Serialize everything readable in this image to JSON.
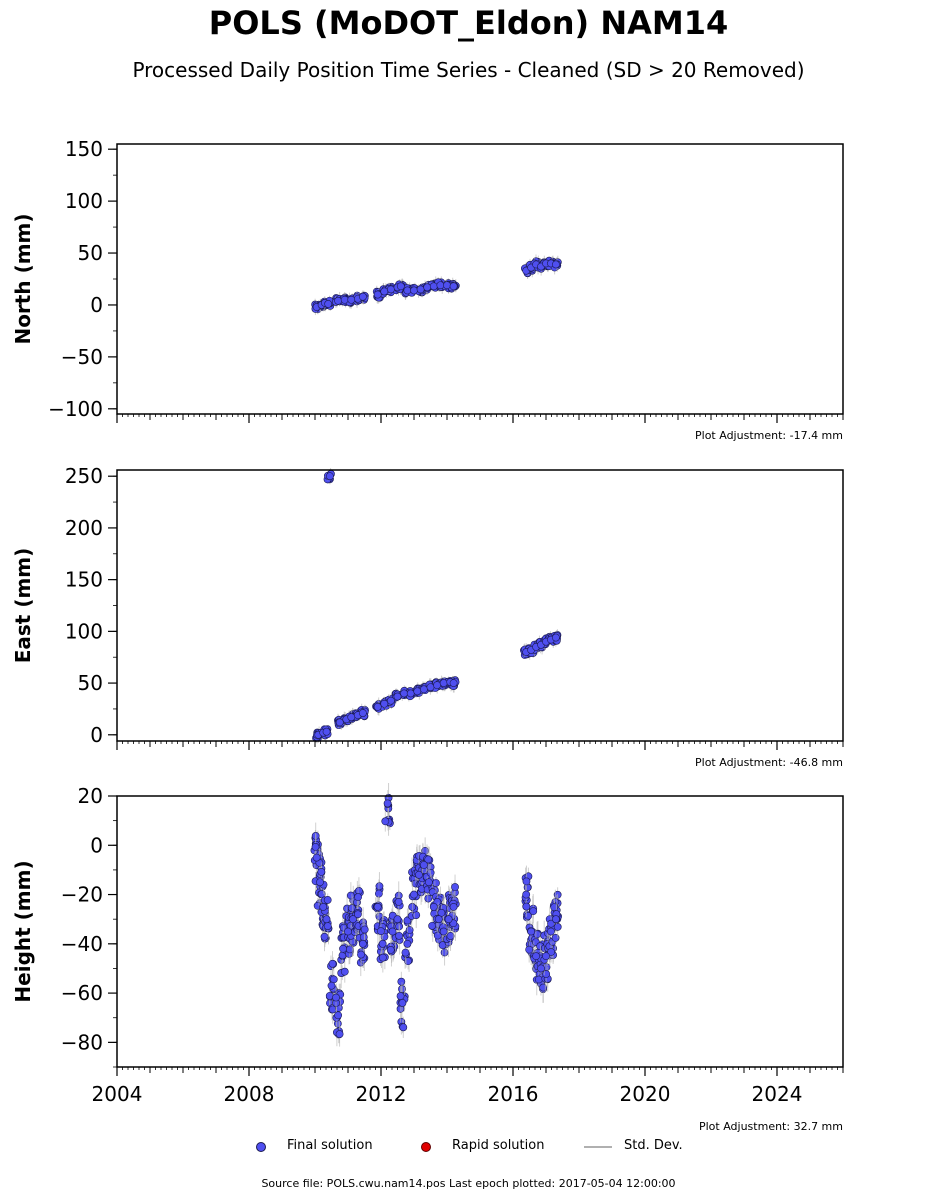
{
  "title": "POLS (MoDOT_Eldon) NAM14",
  "subtitle": "Processed Daily Position Time Series - Cleaned (SD > 20 Removed)",
  "colors": {
    "final": "#4f4ff0",
    "rapid": "#e00000",
    "stddev": "#b0b0b0",
    "marker_edge": "#1a1a50"
  },
  "legend": {
    "final": "Final solution",
    "rapid": "Rapid solution",
    "stddev": "Std. Dev."
  },
  "source_text": "Source file: POLS.cwu.nam14.pos  Last epoch plotted: 2017-05-04 12:00:00",
  "chart_data": [
    {
      "type": "scatter",
      "ylabel": "North (mm)",
      "adjustment": "Plot Adjustment: -17.4 mm",
      "xlim": [
        2004,
        2026
      ],
      "ylim": [
        -105,
        155
      ],
      "yticks": [
        -100,
        -50,
        0,
        50,
        100,
        150
      ],
      "xticks": [
        2004,
        2008,
        2012,
        2016,
        2020,
        2024
      ],
      "show_xticklabels": false,
      "series": [
        {
          "x": [
            2010.05,
            2010.2,
            2010.3,
            2010.4,
            2010.7,
            2010.9,
            2011.1,
            2011.3,
            2011.45,
            2011.9,
            2012.1,
            2012.3,
            2012.5,
            2012.6,
            2012.8,
            2013.0,
            2013.2,
            2013.4,
            2013.6,
            2013.8,
            2014.0,
            2014.2,
            2016.4,
            2016.55,
            2016.7,
            2016.85,
            2017.0,
            2017.15,
            2017.3
          ],
          "y": [
            -2,
            0,
            2,
            1,
            4,
            5,
            5,
            6,
            8,
            10,
            13,
            15,
            17,
            18,
            14,
            14,
            15,
            17,
            18,
            19,
            19,
            18,
            33,
            36,
            39,
            37,
            40,
            40,
            39
          ]
        }
      ]
    },
    {
      "type": "scatter",
      "ylabel": "East (mm)",
      "adjustment": "Plot Adjustment: -46.8 mm",
      "xlim": [
        2004,
        2026
      ],
      "ylim": [
        -6,
        256
      ],
      "yticks": [
        0,
        50,
        100,
        150,
        200,
        250
      ],
      "xticks": [
        2004,
        2008,
        2012,
        2016,
        2020,
        2024
      ],
      "show_xticklabels": false,
      "series": [
        {
          "x": [
            2010.1,
            2010.25,
            2010.35,
            2010.45,
            2010.75,
            2010.95,
            2011.1,
            2011.3,
            2011.45,
            2011.9,
            2012.1,
            2012.3,
            2012.5,
            2012.7,
            2012.9,
            2013.1,
            2013.3,
            2013.5,
            2013.7,
            2013.9,
            2014.1,
            2014.2,
            2016.4,
            2016.55,
            2016.7,
            2016.85,
            2017.0,
            2017.15,
            2017.3
          ],
          "y": [
            0,
            2,
            3,
            250,
            12,
            15,
            17,
            19,
            21,
            27,
            30,
            33,
            37,
            40,
            40,
            42,
            44,
            46,
            48,
            50,
            51,
            50,
            80,
            82,
            85,
            87,
            90,
            92,
            94
          ]
        }
      ]
    },
    {
      "type": "scatter",
      "ylabel": "Height (mm)",
      "adjustment": "Plot Adjustment: 32.7 mm",
      "xlim": [
        2004,
        2026
      ],
      "ylim": [
        -90,
        20
      ],
      "yticks": [
        -80,
        -60,
        -40,
        -20,
        0,
        20
      ],
      "xticks": [
        2004,
        2008,
        2012,
        2016,
        2020,
        2024
      ],
      "show_xticklabels": true,
      "series": [
        {
          "x": [
            2010.05,
            2010.15,
            2010.25,
            2010.35,
            2010.5,
            2010.7,
            2010.85,
            2011.0,
            2011.15,
            2011.3,
            2011.45,
            2011.9,
            2012.05,
            2012.2,
            2012.35,
            2012.5,
            2012.65,
            2012.8,
            2013.0,
            2013.15,
            2013.3,
            2013.45,
            2013.6,
            2013.75,
            2013.9,
            2014.05,
            2014.2,
            2016.4,
            2016.55,
            2016.7,
            2016.85,
            2017.0,
            2017.15,
            2017.3
          ],
          "y": [
            -5,
            -15,
            -25,
            -30,
            -57,
            -69,
            -42,
            -35,
            -30,
            -28,
            -40,
            -25,
            -40,
            17,
            -35,
            -30,
            -64,
            -40,
            -20,
            -12,
            -8,
            -15,
            -25,
            -30,
            -35,
            -30,
            -25,
            -20,
            -35,
            -45,
            -50,
            -45,
            -35,
            -30
          ]
        }
      ]
    }
  ]
}
